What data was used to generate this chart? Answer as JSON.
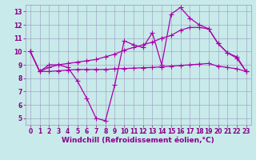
{
  "title": "",
  "xlabel": "Windchill (Refroidissement éolien,°C)",
  "ylabel": "",
  "bg_color": "#c8eaea",
  "line_color": "#aa00aa",
  "grid_color": "#9999bb",
  "xlim": [
    -0.5,
    23.5
  ],
  "ylim": [
    4.5,
    13.5
  ],
  "xticks": [
    0,
    1,
    2,
    3,
    4,
    5,
    6,
    7,
    8,
    9,
    10,
    11,
    12,
    13,
    14,
    15,
    16,
    17,
    18,
    19,
    20,
    21,
    22,
    23
  ],
  "yticks": [
    5,
    6,
    7,
    8,
    9,
    10,
    11,
    12,
    13
  ],
  "line1_x": [
    0,
    1,
    2,
    3,
    4,
    5,
    6,
    7,
    8,
    9,
    10,
    11,
    12,
    13,
    14,
    15,
    16,
    17,
    18,
    19,
    20,
    21,
    22,
    23
  ],
  "line1_y": [
    10.0,
    8.5,
    9.0,
    9.0,
    8.8,
    7.8,
    6.5,
    5.0,
    4.8,
    7.5,
    10.8,
    10.5,
    10.3,
    11.4,
    9.0,
    12.8,
    13.3,
    12.5,
    12.0,
    11.7,
    10.6,
    9.9,
    9.5,
    8.5
  ],
  "line2_x": [
    0,
    1,
    2,
    3,
    4,
    5,
    6,
    7,
    8,
    9,
    10,
    11,
    12,
    13,
    14,
    15,
    16,
    17,
    18,
    19,
    20,
    21,
    22,
    23
  ],
  "line2_y": [
    10.0,
    8.5,
    8.8,
    9.0,
    9.1,
    9.2,
    9.3,
    9.4,
    9.6,
    9.8,
    10.1,
    10.3,
    10.5,
    10.7,
    11.0,
    11.2,
    11.6,
    11.8,
    11.8,
    11.7,
    10.6,
    9.9,
    9.6,
    8.5
  ],
  "line3_x": [
    0,
    1,
    2,
    3,
    4,
    5,
    6,
    7,
    8,
    9,
    10,
    11,
    12,
    13,
    14,
    15,
    16,
    17,
    18,
    19,
    20,
    21,
    22,
    23
  ],
  "line3_y": [
    10.0,
    8.5,
    8.5,
    8.55,
    8.6,
    8.65,
    8.65,
    8.65,
    8.65,
    8.7,
    8.72,
    8.75,
    8.78,
    8.8,
    8.85,
    8.9,
    8.95,
    9.0,
    9.05,
    9.1,
    8.9,
    8.8,
    8.7,
    8.5
  ],
  "marker": "+",
  "markersize": 4,
  "linewidth": 0.9,
  "xlabel_fontsize": 6.5,
  "tick_fontsize": 5.5,
  "xlabel_color": "#880088",
  "tick_color": "#880088",
  "tick_label_color": "#880088"
}
